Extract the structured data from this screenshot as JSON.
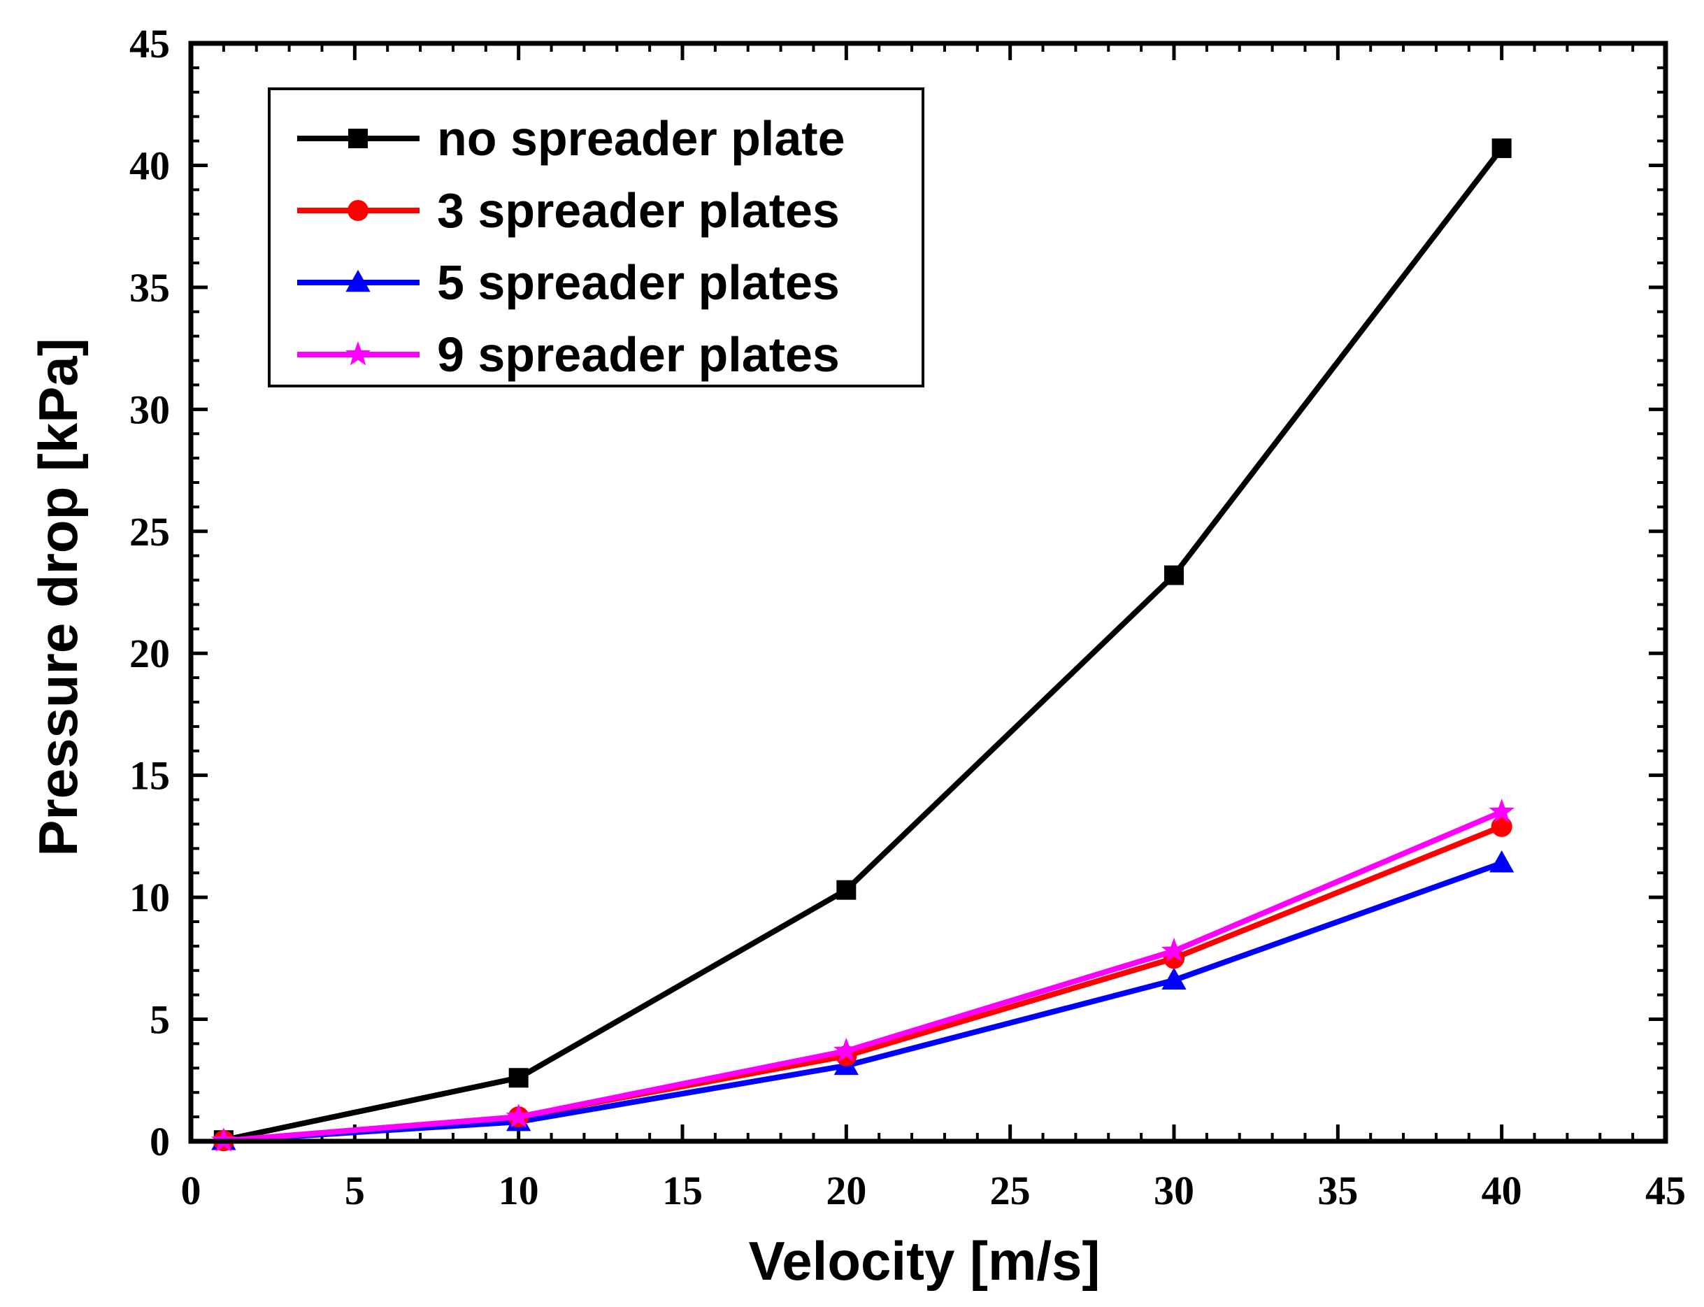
{
  "chart_data": {
    "type": "line",
    "title": "",
    "xlabel": "Velocity [m/s]",
    "ylabel": "Pressure drop [kPa]",
    "xlim": [
      0,
      45
    ],
    "ylim": [
      0,
      45
    ],
    "x_ticks": [
      0,
      5,
      10,
      15,
      20,
      25,
      30,
      35,
      40,
      45
    ],
    "y_ticks": [
      0,
      5,
      10,
      15,
      20,
      25,
      30,
      35,
      40,
      45
    ],
    "x_tick_labels": [
      "0",
      "5",
      "10",
      "15",
      "20",
      "25",
      "30",
      "35",
      "40",
      "45"
    ],
    "y_tick_labels": [
      "0",
      "5",
      "10",
      "15",
      "20",
      "25",
      "30",
      "35",
      "40",
      "45"
    ],
    "grid": false,
    "legend_position": "top-left",
    "series": [
      {
        "name": "no spreader plate",
        "color": "#000000",
        "marker": "square",
        "x": [
          1,
          10,
          20,
          30,
          40
        ],
        "y": [
          0.05,
          2.6,
          10.3,
          23.2,
          40.7
        ]
      },
      {
        "name": "3 spreader plates",
        "color": "#ff0000",
        "marker": "circle",
        "x": [
          1,
          10,
          20,
          30,
          40
        ],
        "y": [
          0.02,
          1.0,
          3.5,
          7.5,
          12.9
        ]
      },
      {
        "name": "5 spreader plates",
        "color": "#0000ff",
        "marker": "triangle",
        "x": [
          1,
          10,
          20,
          30,
          40
        ],
        "y": [
          0.02,
          0.8,
          3.1,
          6.6,
          11.4
        ]
      },
      {
        "name": "9 spreader plates",
        "color": "#ff00ff",
        "marker": "star",
        "x": [
          1,
          10,
          20,
          30,
          40
        ],
        "y": [
          0.02,
          1.0,
          3.7,
          7.8,
          13.5
        ]
      }
    ]
  }
}
